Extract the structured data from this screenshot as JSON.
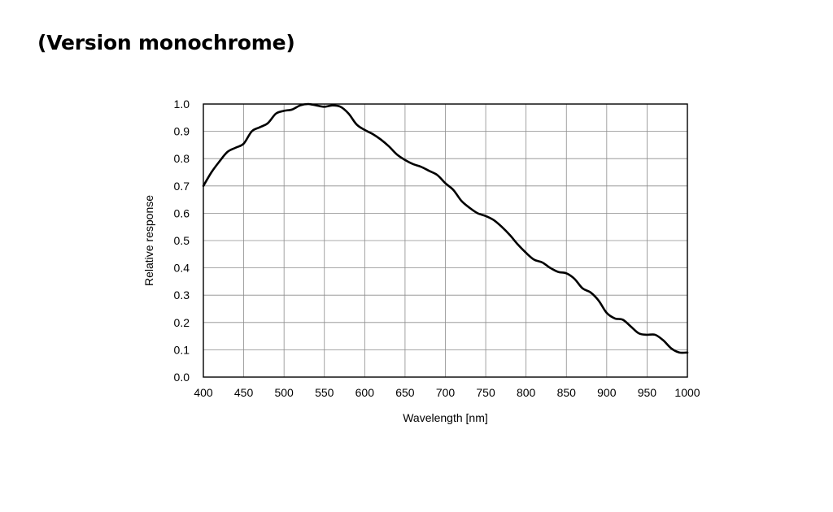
{
  "slide": {
    "title": "(Version monochrome)"
  },
  "chart_data": {
    "type": "line",
    "title": "",
    "xlabel": "Wavelength [nm]",
    "ylabel": "Relative response",
    "xlim": [
      400,
      1000
    ],
    "ylim": [
      0.0,
      1.0
    ],
    "x_ticks": [
      "400",
      "450",
      "500",
      "550",
      "600",
      "650",
      "700",
      "750",
      "800",
      "850",
      "900",
      "950",
      "1000"
    ],
    "y_ticks": [
      "0.0",
      "0.1",
      "0.2",
      "0.3",
      "0.4",
      "0.5",
      "0.6",
      "0.7",
      "0.8",
      "0.9",
      "1.0"
    ],
    "grid": true,
    "legend": "none",
    "line_color": "#000000",
    "series": [
      {
        "x": [
          400,
          410,
          420,
          430,
          440,
          450,
          460,
          470,
          480,
          490,
          500,
          510,
          520,
          530,
          540,
          550,
          560,
          570,
          580,
          590,
          600,
          610,
          620,
          630,
          640,
          650,
          660,
          670,
          680,
          690,
          700,
          710,
          720,
          730,
          740,
          750,
          760,
          770,
          780,
          790,
          800,
          810,
          820,
          830,
          840,
          850,
          860,
          870,
          880,
          890,
          900,
          910,
          920,
          930,
          940,
          950,
          960,
          970,
          980,
          990,
          1000
        ],
        "y": [
          0.7,
          0.75,
          0.79,
          0.825,
          0.84,
          0.855,
          0.9,
          0.915,
          0.93,
          0.965,
          0.975,
          0.98,
          0.995,
          1.0,
          0.995,
          0.99,
          0.995,
          0.99,
          0.965,
          0.925,
          0.905,
          0.89,
          0.87,
          0.845,
          0.815,
          0.795,
          0.78,
          0.77,
          0.755,
          0.74,
          0.71,
          0.685,
          0.645,
          0.62,
          0.6,
          0.59,
          0.575,
          0.55,
          0.52,
          0.485,
          0.455,
          0.43,
          0.42,
          0.4,
          0.385,
          0.38,
          0.36,
          0.325,
          0.31,
          0.28,
          0.235,
          0.215,
          0.21,
          0.185,
          0.16,
          0.155,
          0.155,
          0.135,
          0.105,
          0.09,
          0.09
        ]
      }
    ]
  }
}
